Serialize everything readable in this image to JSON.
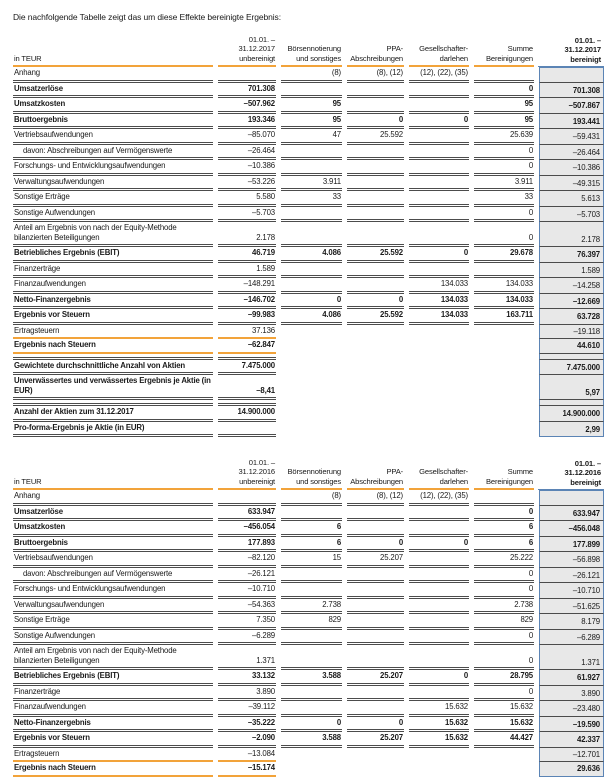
{
  "intro": "Die nachfolgende Tabelle zeigt das um diese Effekte bereinigte Ergebnis:",
  "colors": {
    "accent_orange": "#f2a33a",
    "box_border_blue": "#5b84b5",
    "box_fill_gray": "#e8e8e8",
    "rule_dark": "#4c4c4c",
    "text": "#1a1a1a"
  },
  "tables": [
    {
      "name": "ergebnis-2017",
      "col_headers": [
        "in TEUR",
        "01.01. –\n31.12.2017\nunbereinigt",
        "Börsennotierung\nund sonstiges",
        "PPA-\nAbschreibungen",
        "Gesellschafter-\ndarlehen",
        "Summe\nBereinigungen",
        "01.01. –\n31.12.2017\nbereinigt"
      ],
      "rows": [
        {
          "label": "Anhang",
          "values": [
            "",
            "(8)",
            "(8), (12)",
            "(12), (22), (35)",
            "",
            ""
          ],
          "rule": "full"
        },
        {
          "label": "Umsatzerlöse",
          "bold": true,
          "values": [
            "701.308",
            "",
            "",
            "",
            "0",
            "701.308"
          ],
          "rule": "full"
        },
        {
          "label": "Umsatzkosten",
          "bold": true,
          "values": [
            "–507.962",
            "95",
            "",
            "",
            "95",
            "–507.867"
          ],
          "rule": "full"
        },
        {
          "label": "Bruttoergebnis",
          "bold": true,
          "values": [
            "193.346",
            "95",
            "0",
            "0",
            "95",
            "193.441"
          ],
          "rule": "full"
        },
        {
          "label": "Vertriebsaufwendungen",
          "values": [
            "–85.070",
            "47",
            "25.592",
            "",
            "25.639",
            "–59.431"
          ],
          "rule": "full"
        },
        {
          "label": "davon: Abschreibungen auf Vermögenswerte",
          "indent": true,
          "values": [
            "–26.464",
            "",
            "",
            "",
            "0",
            "–26.464"
          ],
          "rule": "full"
        },
        {
          "label": "Forschungs- und Entwicklungsaufwendungen",
          "values": [
            "–10.386",
            "",
            "",
            "",
            "0",
            "–10.386"
          ],
          "rule": "full"
        },
        {
          "label": "Verwaltungsaufwendungen",
          "values": [
            "–53.226",
            "3.911",
            "",
            "",
            "3.911",
            "–49.315"
          ],
          "rule": "full"
        },
        {
          "label": "Sonstige Erträge",
          "values": [
            "5.580",
            "33",
            "",
            "",
            "33",
            "5.613"
          ],
          "rule": "full"
        },
        {
          "label": "Sonstige Aufwendungen",
          "values": [
            "–5.703",
            "",
            "",
            "",
            "0",
            "–5.703"
          ],
          "rule": "full"
        },
        {
          "label": "Anteil am Ergebnis von nach der Equity-Methode\nbilanzierten Beteiligungen",
          "values": [
            "2.178",
            "",
            "",
            "",
            "0",
            "2.178"
          ],
          "rule": "full"
        },
        {
          "label": "Betriebliches Ergebnis (EBIT)",
          "bold": true,
          "values": [
            "46.719",
            "4.086",
            "25.592",
            "0",
            "29.678",
            "76.397"
          ],
          "rule": "full"
        },
        {
          "label": "Finanzerträge",
          "values": [
            "1.589",
            "",
            "",
            "",
            "",
            "1.589"
          ],
          "rule": "full"
        },
        {
          "label": "Finanzaufwendungen",
          "values": [
            "–148.291",
            "",
            "",
            "134.033",
            "134.033",
            "–14.258"
          ],
          "rule": "full"
        },
        {
          "label": "Netto-Finanzergebnis",
          "bold": true,
          "values": [
            "–146.702",
            "0",
            "0",
            "134.033",
            "134.033",
            "–12.669"
          ],
          "rule": "full"
        },
        {
          "label": "Ergebnis vor Steuern",
          "bold": true,
          "values": [
            "–99.983",
            "4.086",
            "25.592",
            "134.033",
            "163.711",
            "63.728"
          ],
          "rule": "full"
        },
        {
          "label": "Ertragsteuern",
          "values": [
            "37.136",
            "",
            "",
            "",
            "",
            "–19.118"
          ],
          "rule": "orange"
        },
        {
          "label": "Ergebnis nach Steuern",
          "bold": true,
          "values": [
            "–62.847",
            "",
            "",
            "",
            "",
            "44.610"
          ],
          "rule": "orange"
        },
        {
          "label": "",
          "values": [
            "",
            "",
            "",
            "",
            "",
            ""
          ],
          "rule": "left",
          "spacer": true
        },
        {
          "label": "Gewichtete durchschnittliche Anzahl von Aktien",
          "bold": true,
          "values": [
            "7.475.000",
            "",
            "",
            "",
            "",
            "7.475.000"
          ],
          "rule": "left"
        },
        {
          "label": "Unverwässertes und verwässertes Ergebnis je Aktie (in EUR)",
          "bold": true,
          "values": [
            "–8,41",
            "",
            "",
            "",
            "",
            "5,97"
          ],
          "rule": "left"
        },
        {
          "label": "",
          "values": [
            "",
            "",
            "",
            "",
            "",
            ""
          ],
          "rule": "left",
          "spacer": true
        },
        {
          "label": "Anzahl der Aktien zum 31.12.2017",
          "bold": true,
          "values": [
            "14.900.000",
            "",
            "",
            "",
            "",
            "14.900.000"
          ],
          "rule": "left"
        },
        {
          "label": "Pro-forma-Ergebnis je Aktie (in EUR)",
          "bold": true,
          "values": [
            "",
            "",
            "",
            "",
            "",
            "2,99"
          ],
          "rule": "left"
        }
      ]
    },
    {
      "name": "ergebnis-2016",
      "col_headers": [
        "in TEUR",
        "01.01. –\n31.12.2016\nunbereinigt",
        "Börsennotierung\nund sonstiges",
        "PPA-\nAbschreibungen",
        "Gesellschafter-\ndarlehen",
        "Summe\nBereinigungen",
        "01.01. –\n31.12.2016\nbereinigt"
      ],
      "rows": [
        {
          "label": "Anhang",
          "values": [
            "",
            "(8)",
            "(8), (12)",
            "(12), (22), (35)",
            "",
            ""
          ],
          "rule": "full"
        },
        {
          "label": "Umsatzerlöse",
          "bold": true,
          "values": [
            "633.947",
            "",
            "",
            "",
            "0",
            "633.947"
          ],
          "rule": "full"
        },
        {
          "label": "Umsatzkosten",
          "bold": true,
          "values": [
            "–456.054",
            "6",
            "",
            "",
            "6",
            "–456.048"
          ],
          "rule": "full"
        },
        {
          "label": "Bruttoergebnis",
          "bold": true,
          "values": [
            "177.893",
            "6",
            "0",
            "0",
            "6",
            "177.899"
          ],
          "rule": "full"
        },
        {
          "label": "Vertriebsaufwendungen",
          "values": [
            "–82.120",
            "15",
            "25.207",
            "",
            "25.222",
            "–56.898"
          ],
          "rule": "full"
        },
        {
          "label": "davon: Abschreibungen auf Vermögenswerte",
          "indent": true,
          "values": [
            "–26.121",
            "",
            "",
            "",
            "0",
            "–26.121"
          ],
          "rule": "full"
        },
        {
          "label": "Forschungs- und Entwicklungsaufwendungen",
          "values": [
            "–10.710",
            "",
            "",
            "",
            "0",
            "–10.710"
          ],
          "rule": "full"
        },
        {
          "label": "Verwaltungsaufwendungen",
          "values": [
            "–54.363",
            "2.738",
            "",
            "",
            "2.738",
            "–51.625"
          ],
          "rule": "full"
        },
        {
          "label": "Sonstige Erträge",
          "values": [
            "7.350",
            "829",
            "",
            "",
            "829",
            "8.179"
          ],
          "rule": "full"
        },
        {
          "label": "Sonstige Aufwendungen",
          "values": [
            "–6.289",
            "",
            "",
            "",
            "0",
            "–6.289"
          ],
          "rule": "full"
        },
        {
          "label": "Anteil am Ergebnis von nach der Equity-Methode\nbilanzierten Beteiligungen",
          "values": [
            "1.371",
            "",
            "",
            "",
            "0",
            "1.371"
          ],
          "rule": "full"
        },
        {
          "label": "Betriebliches Ergebnis (EBIT)",
          "bold": true,
          "values": [
            "33.132",
            "3.588",
            "25.207",
            "0",
            "28.795",
            "61.927"
          ],
          "rule": "full"
        },
        {
          "label": "Finanzerträge",
          "values": [
            "3.890",
            "",
            "",
            "",
            "0",
            "3.890"
          ],
          "rule": "full"
        },
        {
          "label": "Finanzaufwendungen",
          "values": [
            "–39.112",
            "",
            "",
            "15.632",
            "15.632",
            "–23.480"
          ],
          "rule": "full"
        },
        {
          "label": "Netto-Finanzergebnis",
          "bold": true,
          "values": [
            "–35.222",
            "0",
            "0",
            "15.632",
            "15.632",
            "–19.590"
          ],
          "rule": "full"
        },
        {
          "label": "Ergebnis vor Steuern",
          "bold": true,
          "values": [
            "–2.090",
            "3.588",
            "25.207",
            "15.632",
            "44.427",
            "42.337"
          ],
          "rule": "full"
        },
        {
          "label": "Ertragsteuern",
          "values": [
            "–13.084",
            "",
            "",
            "",
            "",
            "–12.701"
          ],
          "rule": "orange"
        },
        {
          "label": "Ergebnis nach Steuern",
          "bold": true,
          "values": [
            "–15.174",
            "",
            "",
            "",
            "",
            "29.636"
          ],
          "rule": "orange"
        }
      ]
    }
  ]
}
